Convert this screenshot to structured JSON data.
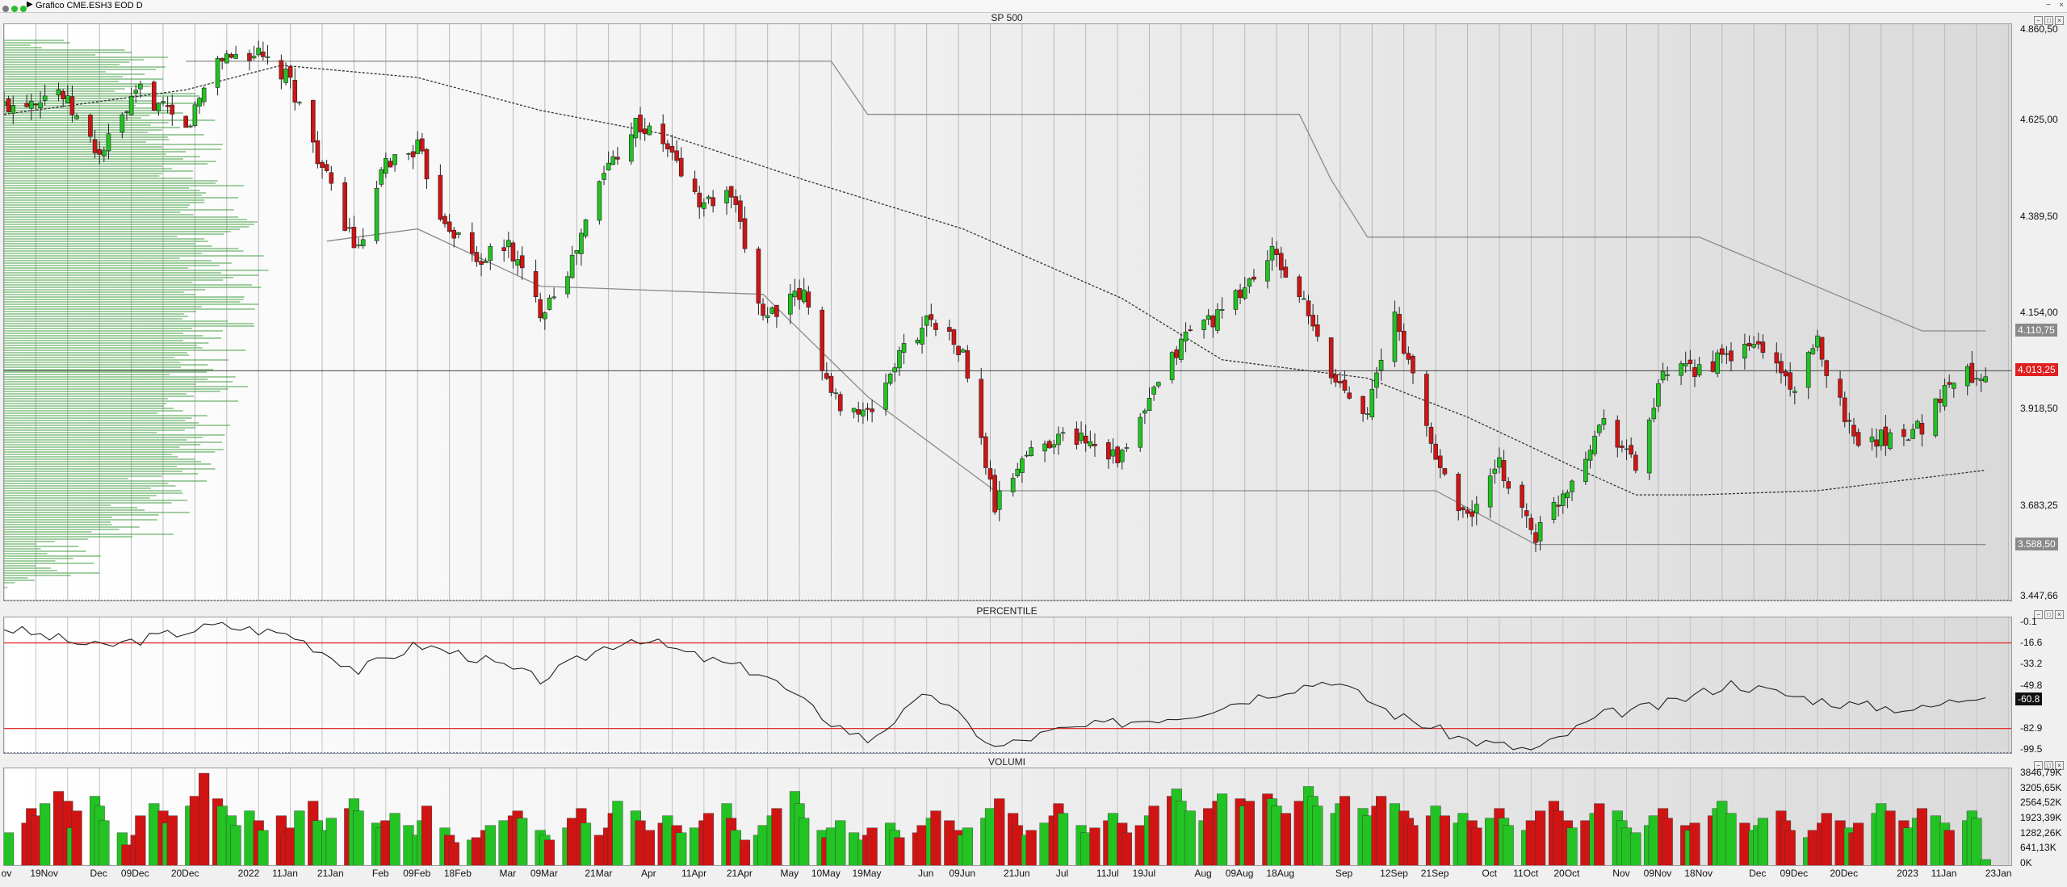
{
  "window": {
    "title": "Grafico CME.ESH3 EOD D"
  },
  "panes": {
    "price": {
      "label": "SP 500"
    },
    "percentile": {
      "label": "PERCENTILE"
    },
    "volume": {
      "label": "VOLUMI"
    }
  },
  "price_axis": {
    "ticks": [
      "4.860,50",
      "4.625,00",
      "4.389,50",
      "4.154,00",
      "3.918,50",
      "3.683,25",
      "3.447,66"
    ],
    "upper_band_tag": "4.110,75",
    "current_price_tag": "4.013,25",
    "lower_band_tag": "3.588,50"
  },
  "percentile_axis": {
    "ticks": [
      "-0.1",
      "-16.6",
      "-33.2",
      "-49.8",
      "-82.9",
      "-99.5"
    ],
    "current_tag": "-60.8"
  },
  "volume_axis": {
    "ticks": [
      "3846,79K",
      "3205,65K",
      "2564,52K",
      "1923,39K",
      "1282,26K",
      "641,13K",
      "0K"
    ]
  },
  "x_axis": {
    "labels": [
      "ov",
      "19Nov",
      "Dec",
      "09Dec",
      "20Dec",
      "2022",
      "11Jan",
      "21Jan",
      "Feb",
      "09Feb",
      "18Feb",
      "Mar",
      "09Mar",
      "21Mar",
      "Apr",
      "11Apr",
      "21Apr",
      "May",
      "10May",
      "19May",
      "Jun",
      "09Jun",
      "21Jun",
      "Jul",
      "11Jul",
      "19Jul",
      "Aug",
      "09Aug",
      "18Aug",
      "Sep",
      "12Sep",
      "21Sep",
      "Oct",
      "11Oct",
      "20Oct",
      "Nov",
      "09Nov",
      "18Nov",
      "Dec",
      "09Dec",
      "20Dec",
      "2023",
      "11Jan",
      "23Jan"
    ]
  },
  "colors": {
    "up": "#22c322",
    "down": "#d01414",
    "reference_line": "#e03030",
    "current_tag": "#e02020"
  },
  "chart_data": [
    {
      "type": "candlestick",
      "title": "SP 500",
      "ylim": [
        3447.66,
        4860.5
      ],
      "x_range": [
        "2021-11-10",
        "2023-01-26"
      ],
      "price_path": [
        [
          "2021-11-10",
          4660
        ],
        [
          "2021-11-22",
          4700
        ],
        [
          "2021-12-01",
          4540
        ],
        [
          "2021-12-10",
          4700
        ],
        [
          "2021-12-20",
          4600
        ],
        [
          "2021-12-27",
          4780
        ],
        [
          "2022-01-04",
          4790
        ],
        [
          "2022-01-12",
          4720
        ],
        [
          "2022-01-20",
          4480
        ],
        [
          "2022-01-27",
          4300
        ],
        [
          "2022-02-02",
          4520
        ],
        [
          "2022-02-09",
          4560
        ],
        [
          "2022-02-14",
          4400
        ],
        [
          "2022-02-22",
          4280
        ],
        [
          "2022-03-01",
          4320
        ],
        [
          "2022-03-08",
          4160
        ],
        [
          "2022-03-15",
          4280
        ],
        [
          "2022-03-22",
          4500
        ],
        [
          "2022-03-29",
          4620
        ],
        [
          "2022-04-05",
          4560
        ],
        [
          "2022-04-12",
          4420
        ],
        [
          "2022-04-19",
          4440
        ],
        [
          "2022-04-26",
          4150
        ],
        [
          "2022-05-05",
          4200
        ],
        [
          "2022-05-11",
          3950
        ],
        [
          "2022-05-19",
          3900
        ],
        [
          "2022-05-26",
          4050
        ],
        [
          "2022-06-02",
          4150
        ],
        [
          "2022-06-09",
          4050
        ],
        [
          "2022-06-16",
          3680
        ],
        [
          "2022-06-22",
          3800
        ],
        [
          "2022-06-29",
          3850
        ],
        [
          "2022-07-06",
          3850
        ],
        [
          "2022-07-14",
          3800
        ],
        [
          "2022-07-22",
          3980
        ],
        [
          "2022-07-29",
          4120
        ],
        [
          "2022-08-05",
          4150
        ],
        [
          "2022-08-16",
          4300
        ],
        [
          "2022-08-22",
          4200
        ],
        [
          "2022-08-29",
          4000
        ],
        [
          "2022-09-06",
          3920
        ],
        [
          "2022-09-12",
          4150
        ],
        [
          "2022-09-21",
          3800
        ],
        [
          "2022-09-28",
          3650
        ],
        [
          "2022-10-05",
          3780
        ],
        [
          "2022-10-13",
          3610
        ],
        [
          "2022-10-21",
          3750
        ],
        [
          "2022-10-28",
          3900
        ],
        [
          "2022-11-04",
          3780
        ],
        [
          "2022-11-10",
          4000
        ],
        [
          "2022-11-18",
          4020
        ],
        [
          "2022-11-25",
          4050
        ],
        [
          "2022-12-01",
          4080
        ],
        [
          "2022-12-09",
          3970
        ],
        [
          "2022-12-14",
          4080
        ],
        [
          "2022-12-22",
          3850
        ],
        [
          "2022-12-30",
          3850
        ],
        [
          "2023-01-06",
          3880
        ],
        [
          "2023-01-13",
          4000
        ],
        [
          "2023-01-20",
          4010
        ]
      ],
      "moving_average_path": [
        [
          "2021-11-10",
          4640
        ],
        [
          "2021-12-20",
          4700
        ],
        [
          "2022-01-10",
          4760
        ],
        [
          "2022-02-09",
          4730
        ],
        [
          "2022-03-08",
          4650
        ],
        [
          "2022-04-05",
          4590
        ],
        [
          "2022-05-05",
          4480
        ],
        [
          "2022-06-09",
          4360
        ],
        [
          "2022-07-14",
          4190
        ],
        [
          "2022-08-05",
          4040
        ],
        [
          "2022-09-06",
          3995
        ],
        [
          "2022-09-28",
          3900
        ],
        [
          "2022-10-21",
          3780
        ],
        [
          "2022-11-04",
          3710
        ],
        [
          "2022-11-18",
          3710
        ],
        [
          "2022-12-14",
          3720
        ],
        [
          "2023-01-20",
          3770
        ]
      ],
      "upper_channel_path": [
        [
          "2021-12-20",
          4770
        ],
        [
          "2022-05-11",
          4770
        ],
        [
          "2022-05-19",
          4640
        ],
        [
          "2022-08-22",
          4640
        ],
        [
          "2022-08-29",
          4480
        ],
        [
          "2022-09-06",
          4340
        ],
        [
          "2022-11-18",
          4340
        ],
        [
          "2023-01-06",
          4110.75
        ],
        [
          "2023-01-20",
          4110.75
        ]
      ],
      "lower_channel_path": [
        [
          "2022-01-20",
          4330
        ],
        [
          "2022-02-09",
          4360
        ],
        [
          "2022-03-08",
          4220
        ],
        [
          "2022-04-26",
          4200
        ],
        [
          "2022-05-19",
          3950
        ],
        [
          "2022-06-16",
          3720
        ],
        [
          "2022-09-21",
          3720
        ],
        [
          "2022-10-13",
          3588.5
        ],
        [
          "2023-01-20",
          3588.5
        ]
      ],
      "current_price": 4013.25
    },
    {
      "type": "line",
      "title": "PERCENTILE",
      "ylim": [
        -100,
        0
      ],
      "reference_lines": [
        -16.6,
        -82.9
      ],
      "x": [
        "2021-11-10",
        "2021-12-01",
        "2021-12-27",
        "2022-01-12",
        "2022-01-27",
        "2022-02-09",
        "2022-02-22",
        "2022-03-08",
        "2022-03-22",
        "2022-03-29",
        "2022-04-12",
        "2022-04-26",
        "2022-05-11",
        "2022-05-19",
        "2022-06-02",
        "2022-06-16",
        "2022-06-29",
        "2022-07-14",
        "2022-07-29",
        "2022-08-16",
        "2022-08-29",
        "2022-09-12",
        "2022-09-28",
        "2022-10-13",
        "2022-10-28",
        "2022-11-10",
        "2022-11-25",
        "2022-12-09",
        "2022-12-22",
        "2023-01-06",
        "2023-01-20"
      ],
      "values": [
        -5,
        -20,
        -3,
        -10,
        -38,
        -18,
        -28,
        -45,
        -20,
        -12,
        -28,
        -40,
        -78,
        -92,
        -55,
        -98,
        -85,
        -78,
        -72,
        -55,
        -45,
        -72,
        -92,
        -100,
        -72,
        -65,
        -48,
        -58,
        -65,
        -68,
        -55
      ]
    },
    {
      "type": "bar",
      "title": "VOLUMI",
      "ylim": [
        0,
        3846.79
      ],
      "unit": "K",
      "series_note": "green = up day, red = down day",
      "daily_volumes": [
        1000,
        1400,
        1800,
        2400,
        2100,
        2600,
        3100,
        2700,
        1600,
        2300,
        2900,
        2500,
        1900,
        1400,
        900,
        1300,
        2100,
        2600,
        2300,
        1800,
        2100,
        2500,
        2900,
        3846,
        2800,
        2500,
        2100,
        1700,
        2300,
        1900,
        1500,
        2100,
        1300,
        1600,
        2300,
        2700,
        1900,
        1500,
        2000,
        2400,
        2800,
        2300,
        1800,
        1600,
        1900,
        2200,
        1700,
        1300,
        1900,
        2500,
        1600,
        1300,
        1000,
        1100,
        1200,
        1500,
        1700,
        1900,
        2100,
        2300,
        2000,
        1500,
        1300,
        1100,
        1600,
        2000,
        2400,
        1800,
        1300,
        1600,
        2200,
        2700,
        2300,
        1900,
        1500,
        1800,
        2100,
        1700,
        1400,
        1600,
        1900,
        2200,
        2600,
        2000,
        1500,
        1100,
        1300,
        1700,
        2100,
        2400,
        3100,
        2600,
        2000,
        1500,
        1200,
        1600,
        1900,
        1400,
        1100,
        1300,
        1600,
        1800,
        1500,
        1200,
        1400,
        1700,
        2000,
        2300,
        1900,
        1500,
        1300,
        1600,
        2000,
        2400,
        2800,
        2200,
        1700,
        1300,
        1500,
        1800,
        2100,
        2600,
        2200,
        1700,
        1400,
        1600,
        1900,
        2200,
        1800,
        1400,
        1700,
        2100,
        2500,
        2900,
        3200,
        2700,
        2300,
        1900,
        2400,
        2700,
        3000,
        2800,
        2500,
        2700,
        3000,
        2800,
        2500,
        2200,
        2700,
        3300,
        2900,
        2500,
        2200,
        2600,
        2900,
        2400,
        2100,
        2500,
        2900,
        2600,
        2300,
        2000,
        1700,
        2100,
        2500,
        2100,
        1800,
        2200,
        1900,
        1600,
        2000,
        2400,
        2000,
        1700,
        1500,
        1900,
        2300,
        2700,
        2300,
        1900,
        1600,
        1900,
        2200,
        2600,
        2300,
        1900,
        1600,
        1400,
        1700,
        2100,
        2400,
        2000,
        1700,
        1500,
        1800,
        2100,
        2400,
        2700,
        2200,
        1800,
        1500,
        1700,
        2000,
        2300,
        1900,
        1500,
        1200,
        1500,
        1800,
        2200,
        1900,
        1600,
        1400,
        1800,
        2200,
        2600,
        2300,
        1900,
        1600,
        2000,
        2400,
        2100,
        1800,
        1500,
        1900,
        2300,
        2000,
        300
      ]
    }
  ]
}
